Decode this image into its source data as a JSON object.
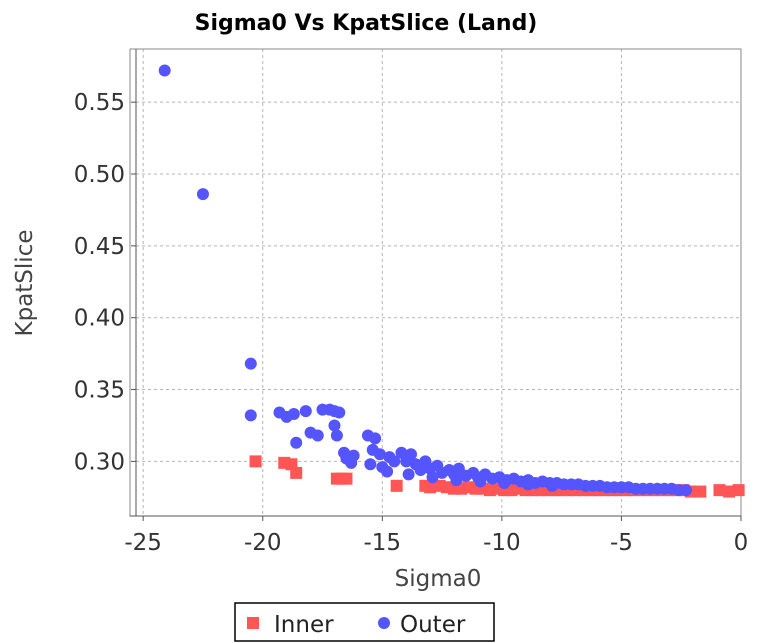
{
  "chart_data": {
    "type": "scatter",
    "title": "Sigma0 Vs KpatSlice (Land)",
    "xlabel": "Sigma0",
    "ylabel": "KpatSlice",
    "xlim": [
      -25.3,
      0
    ],
    "ylim": [
      0.262,
      0.587
    ],
    "xticks": [
      "-25",
      "-20",
      "-15",
      "-10",
      "-5",
      "0"
    ],
    "xtick_values": [
      -25,
      -20,
      -15,
      -10,
      -5,
      0
    ],
    "yticks": [
      "0.55",
      "0.50",
      "0.45",
      "0.40",
      "0.35",
      "0.30"
    ],
    "ytick_values": [
      0.55,
      0.5,
      0.45,
      0.4,
      0.35,
      0.3
    ],
    "grid": true,
    "legend_position": "bottom",
    "series": [
      {
        "name": "Inner",
        "marker": "square",
        "color": "#ff5555",
        "points": [
          [
            -20.3,
            0.3
          ],
          [
            -19.1,
            0.299
          ],
          [
            -18.8,
            0.298
          ],
          [
            -18.6,
            0.292
          ],
          [
            -16.9,
            0.288
          ],
          [
            -16.7,
            0.288
          ],
          [
            -16.5,
            0.288
          ],
          [
            -14.4,
            0.283
          ],
          [
            -13.2,
            0.283
          ],
          [
            -13.0,
            0.282
          ],
          [
            -12.6,
            0.283
          ],
          [
            -12.3,
            0.282
          ],
          [
            -12.0,
            0.281
          ],
          [
            -11.7,
            0.281
          ],
          [
            -11.4,
            0.282
          ],
          [
            -11.1,
            0.281
          ],
          [
            -10.8,
            0.281
          ],
          [
            -10.5,
            0.28
          ],
          [
            -10.2,
            0.281
          ],
          [
            -9.9,
            0.28
          ],
          [
            -9.6,
            0.28
          ],
          [
            -9.3,
            0.281
          ],
          [
            -9.0,
            0.28
          ],
          [
            -8.7,
            0.28
          ],
          [
            -8.4,
            0.28
          ],
          [
            -8.1,
            0.28
          ],
          [
            -7.8,
            0.28
          ],
          [
            -7.5,
            0.28
          ],
          [
            -7.2,
            0.28
          ],
          [
            -6.9,
            0.28
          ],
          [
            -6.6,
            0.28
          ],
          [
            -6.3,
            0.28
          ],
          [
            -6.0,
            0.28
          ],
          [
            -5.7,
            0.28
          ],
          [
            -5.4,
            0.28
          ],
          [
            -5.1,
            0.28
          ],
          [
            -4.8,
            0.28
          ],
          [
            -4.5,
            0.28
          ],
          [
            -4.2,
            0.28
          ],
          [
            -3.9,
            0.28
          ],
          [
            -3.6,
            0.28
          ],
          [
            -3.3,
            0.28
          ],
          [
            -3.0,
            0.28
          ],
          [
            -2.7,
            0.28
          ],
          [
            -2.4,
            0.28
          ],
          [
            -2.1,
            0.279
          ],
          [
            -1.7,
            0.279
          ],
          [
            -0.9,
            0.28
          ],
          [
            -0.5,
            0.279
          ],
          [
            -0.1,
            0.28
          ]
        ]
      },
      {
        "name": "Outer",
        "marker": "circle",
        "color": "#5555ff",
        "points": [
          [
            -24.1,
            0.572
          ],
          [
            -22.5,
            0.486
          ],
          [
            -20.5,
            0.368
          ],
          [
            -20.5,
            0.332
          ],
          [
            -19.3,
            0.334
          ],
          [
            -19.0,
            0.331
          ],
          [
            -18.7,
            0.333
          ],
          [
            -18.2,
            0.335
          ],
          [
            -18.0,
            0.32
          ],
          [
            -17.7,
            0.318
          ],
          [
            -18.6,
            0.313
          ],
          [
            -17.5,
            0.336
          ],
          [
            -17.2,
            0.336
          ],
          [
            -17.0,
            0.335
          ],
          [
            -16.8,
            0.334
          ],
          [
            -17.0,
            0.325
          ],
          [
            -16.9,
            0.318
          ],
          [
            -16.6,
            0.306
          ],
          [
            -16.5,
            0.302
          ],
          [
            -16.3,
            0.299
          ],
          [
            -16.2,
            0.304
          ],
          [
            -15.6,
            0.318
          ],
          [
            -15.3,
            0.316
          ],
          [
            -15.4,
            0.308
          ],
          [
            -15.1,
            0.305
          ],
          [
            -15.5,
            0.298
          ],
          [
            -15.0,
            0.296
          ],
          [
            -14.7,
            0.303
          ],
          [
            -14.5,
            0.3
          ],
          [
            -14.8,
            0.293
          ],
          [
            -14.2,
            0.306
          ],
          [
            -14.0,
            0.3
          ],
          [
            -13.8,
            0.305
          ],
          [
            -13.6,
            0.298
          ],
          [
            -13.4,
            0.294
          ],
          [
            -13.2,
            0.3
          ],
          [
            -13.0,
            0.295
          ],
          [
            -12.7,
            0.297
          ],
          [
            -12.5,
            0.292
          ],
          [
            -12.2,
            0.294
          ],
          [
            -12.0,
            0.291
          ],
          [
            -11.8,
            0.295
          ],
          [
            -11.5,
            0.29
          ],
          [
            -11.2,
            0.292
          ],
          [
            -11.0,
            0.289
          ],
          [
            -10.7,
            0.291
          ],
          [
            -10.4,
            0.288
          ],
          [
            -10.1,
            0.289
          ],
          [
            -9.8,
            0.287
          ],
          [
            -9.5,
            0.288
          ],
          [
            -9.2,
            0.286
          ],
          [
            -8.9,
            0.287
          ],
          [
            -8.6,
            0.285
          ],
          [
            -8.3,
            0.286
          ],
          [
            -8.0,
            0.285
          ],
          [
            -7.7,
            0.285
          ],
          [
            -7.4,
            0.284
          ],
          [
            -7.1,
            0.284
          ],
          [
            -6.8,
            0.284
          ],
          [
            -6.5,
            0.283
          ],
          [
            -6.2,
            0.283
          ],
          [
            -5.9,
            0.283
          ],
          [
            -5.6,
            0.282
          ],
          [
            -5.3,
            0.282
          ],
          [
            -5.0,
            0.282
          ],
          [
            -4.7,
            0.282
          ],
          [
            -4.4,
            0.281
          ],
          [
            -4.1,
            0.281
          ],
          [
            -3.8,
            0.281
          ],
          [
            -3.5,
            0.281
          ],
          [
            -3.2,
            0.281
          ],
          [
            -2.9,
            0.281
          ],
          [
            -2.6,
            0.28
          ],
          [
            -2.3,
            0.28
          ],
          [
            -13.9,
            0.291
          ],
          [
            -12.9,
            0.289
          ],
          [
            -11.9,
            0.287
          ],
          [
            -10.9,
            0.286
          ],
          [
            -9.9,
            0.285
          ],
          [
            -8.9,
            0.284
          ],
          [
            -7.9,
            0.283
          ]
        ]
      }
    ]
  }
}
